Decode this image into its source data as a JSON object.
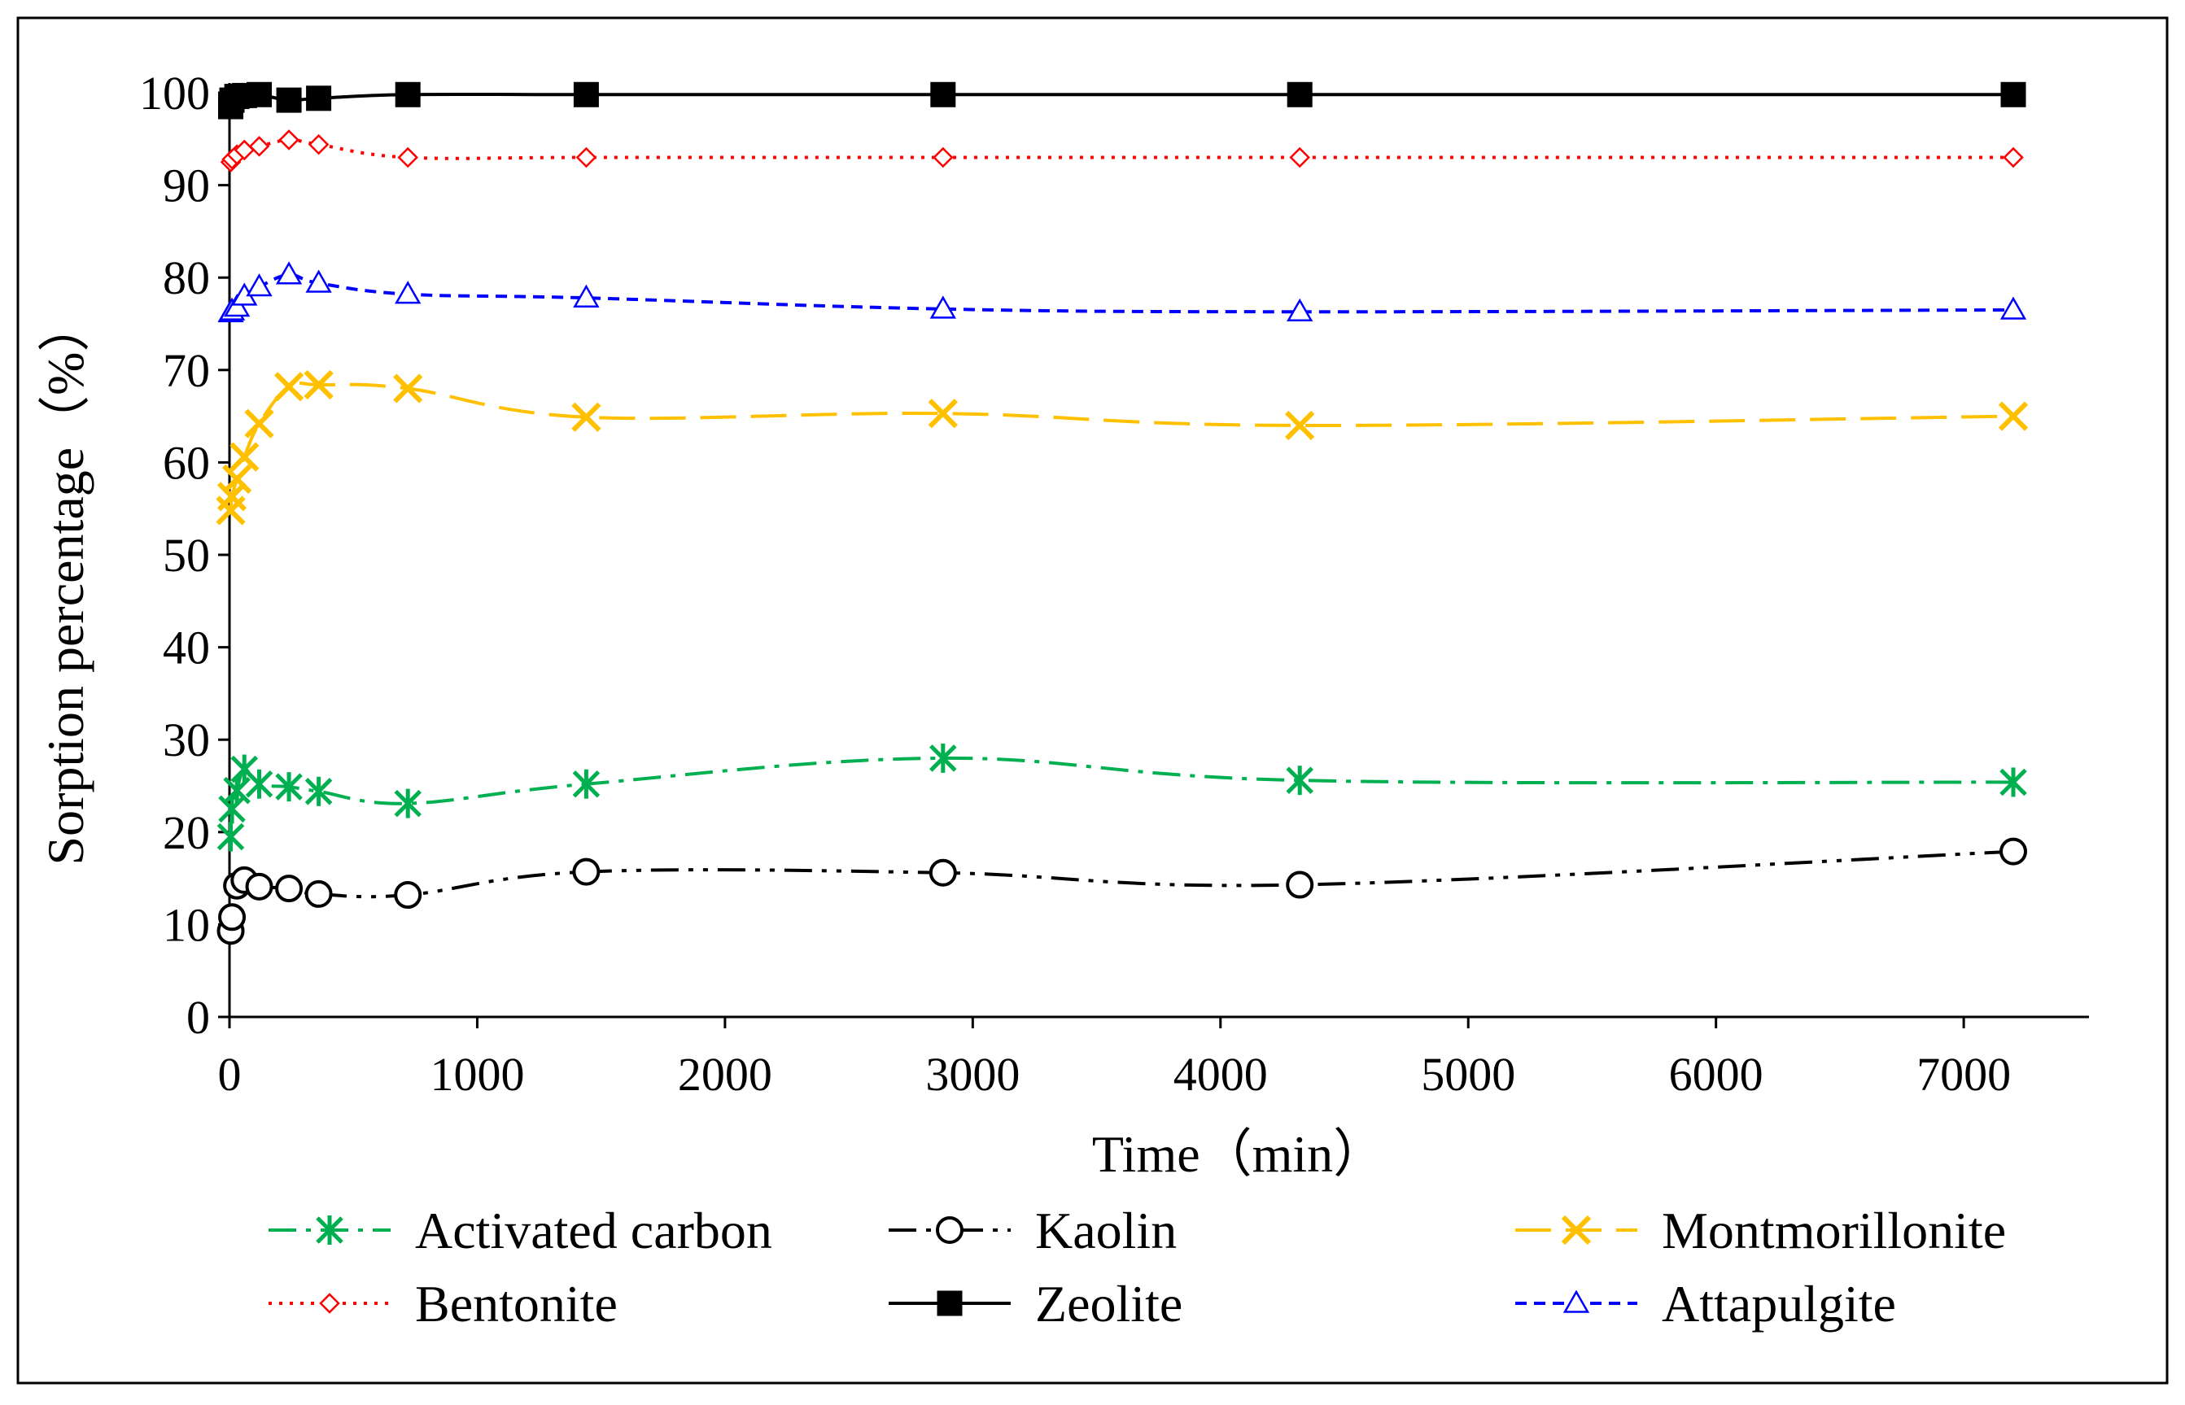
{
  "chart_data": {
    "type": "line",
    "title": "",
    "xlabel": "Time（min）",
    "ylabel": "Sorption percentage（%）",
    "xlim": [
      0,
      7500
    ],
    "ylim": [
      0,
      100
    ],
    "xticks": [
      0,
      1000,
      2000,
      3000,
      4000,
      5000,
      6000,
      7000
    ],
    "yticks": [
      0,
      10,
      20,
      30,
      40,
      50,
      60,
      70,
      80,
      90,
      100
    ],
    "grid": false,
    "legend_position": "bottom",
    "series": [
      {
        "name": "Activated carbon",
        "color": "#00b050",
        "dash": "dashdot",
        "marker": "asterisk",
        "x": [
          5,
          10,
          30,
          60,
          120,
          240,
          360,
          720,
          1440,
          2880,
          4320,
          7200
        ],
        "values": [
          19.5,
          22.5,
          24.5,
          26.8,
          25.2,
          24.9,
          24.4,
          23.1,
          25.2,
          28.0,
          25.6,
          25.4
        ]
      },
      {
        "name": "Kaolin",
        "color": "#000000",
        "dash": "dashdotdot",
        "marker": "circle",
        "x": [
          5,
          10,
          30,
          60,
          120,
          240,
          360,
          720,
          1440,
          2880,
          4320,
          7200
        ],
        "values": [
          9.3,
          10.8,
          14.2,
          14.8,
          14.1,
          13.9,
          13.3,
          13.2,
          15.7,
          15.6,
          14.3,
          17.9
        ]
      },
      {
        "name": "Montmorillonite",
        "color": "#ffc000",
        "dash": "longdash",
        "marker": "x",
        "x": [
          5,
          10,
          30,
          60,
          120,
          240,
          360,
          720,
          1440,
          2880,
          4320,
          7200
        ],
        "values": [
          54.8,
          56.3,
          58.2,
          60.6,
          64.2,
          68.2,
          68.4,
          68.0,
          64.9,
          65.3,
          64.0,
          65.0
        ]
      },
      {
        "name": "Bentonite",
        "color": "#ff0000",
        "dash": "dotted",
        "marker": "diamond",
        "x": [
          5,
          10,
          30,
          60,
          120,
          240,
          360,
          720,
          1440,
          2880,
          4320,
          7200
        ],
        "values": [
          92.5,
          92.8,
          93.3,
          93.8,
          94.2,
          94.9,
          94.4,
          93.0,
          93.0,
          93.0,
          93.0,
          93.0
        ]
      },
      {
        "name": "Zeolite",
        "color": "#000000",
        "dash": "solid",
        "marker": "square",
        "x": [
          5,
          10,
          30,
          60,
          120,
          240,
          360,
          720,
          1440,
          2880,
          4320,
          7200
        ],
        "values": [
          98.5,
          99.2,
          99.6,
          99.7,
          99.8,
          99.2,
          99.4,
          99.8,
          99.8,
          99.8,
          99.8,
          99.8
        ]
      },
      {
        "name": "Attapulgite",
        "color": "#0000ff",
        "dash": "shortdash",
        "marker": "triangle",
        "x": [
          5,
          10,
          30,
          60,
          120,
          240,
          360,
          720,
          1440,
          2880,
          4320,
          7200
        ],
        "values": [
          76.2,
          76.4,
          76.8,
          78.0,
          79.0,
          80.3,
          79.4,
          78.2,
          77.8,
          76.6,
          76.3,
          76.5
        ]
      }
    ]
  }
}
